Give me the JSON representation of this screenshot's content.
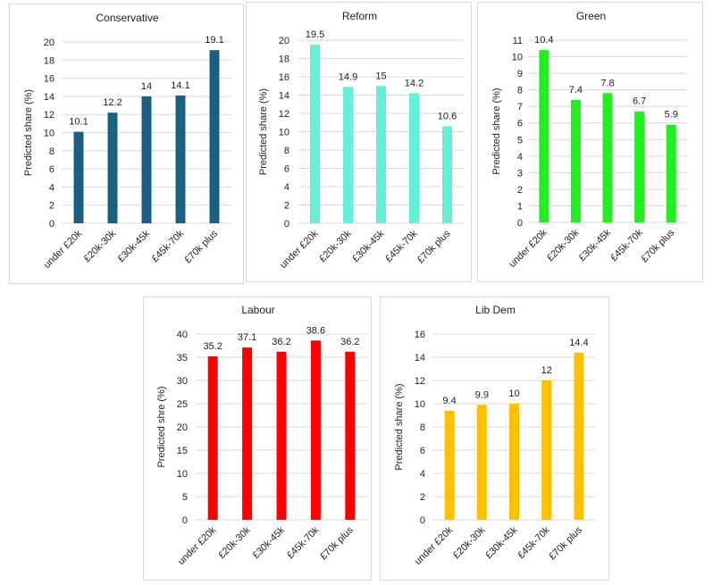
{
  "chart_data": [
    {
      "type": "bar",
      "title": "Conservative",
      "ylabel": "Predicted share (%)",
      "xlabel": "",
      "categories": [
        "under £20k",
        "£20k-30k",
        "£30k-45k",
        "£45k-70k",
        "£70k plus"
      ],
      "values": [
        10.1,
        12.2,
        14,
        14.1,
        19.1
      ],
      "ylim": [
        0,
        20
      ],
      "ytick_step": 2,
      "color": "#1b5f82",
      "grid": true
    },
    {
      "type": "bar",
      "title": "Reform",
      "ylabel": "Predicted share (%)",
      "xlabel": "",
      "categories": [
        "under £20k",
        "£20k-30k",
        "£30k-45k",
        "£45k-70k",
        "£70k plus"
      ],
      "values": [
        19.5,
        14.9,
        15,
        14.2,
        10.6
      ],
      "ylim": [
        0,
        20
      ],
      "ytick_step": 2,
      "color": "#66f0d8",
      "grid": true
    },
    {
      "type": "bar",
      "title": "Green",
      "ylabel": "Predicted share (%)",
      "xlabel": "",
      "categories": [
        "under £20k",
        "£20k-30k",
        "£30k-45k",
        "£45k-70k",
        "£70k plus"
      ],
      "values": [
        10.4,
        7.4,
        7.8,
        6.7,
        5.9
      ],
      "ylim": [
        0,
        11
      ],
      "ytick_step": 1,
      "color": "#22ee22",
      "grid": true
    },
    {
      "type": "bar",
      "title": "Labour",
      "ylabel": "Predicted shre (%)",
      "xlabel": "",
      "categories": [
        "under £20k",
        "£20k-30k",
        "£30k-45k",
        "£45k-70k",
        "£70k plus"
      ],
      "values": [
        35.2,
        37.1,
        36.2,
        38.6,
        36.2
      ],
      "ylim": [
        0,
        40
      ],
      "ytick_step": 5,
      "color": "#ff0000",
      "grid": true
    },
    {
      "type": "bar",
      "title": "Lib Dem",
      "ylabel": "Predicted share (%)",
      "xlabel": "",
      "categories": [
        "under £20k",
        "£20k-30k",
        "£30k-45k",
        "£45k-70k",
        "£70k plus"
      ],
      "values": [
        9.4,
        9.9,
        10,
        12,
        14.4
      ],
      "ylim": [
        0,
        16
      ],
      "ytick_step": 2,
      "color": "#ffc000",
      "grid": true
    }
  ]
}
